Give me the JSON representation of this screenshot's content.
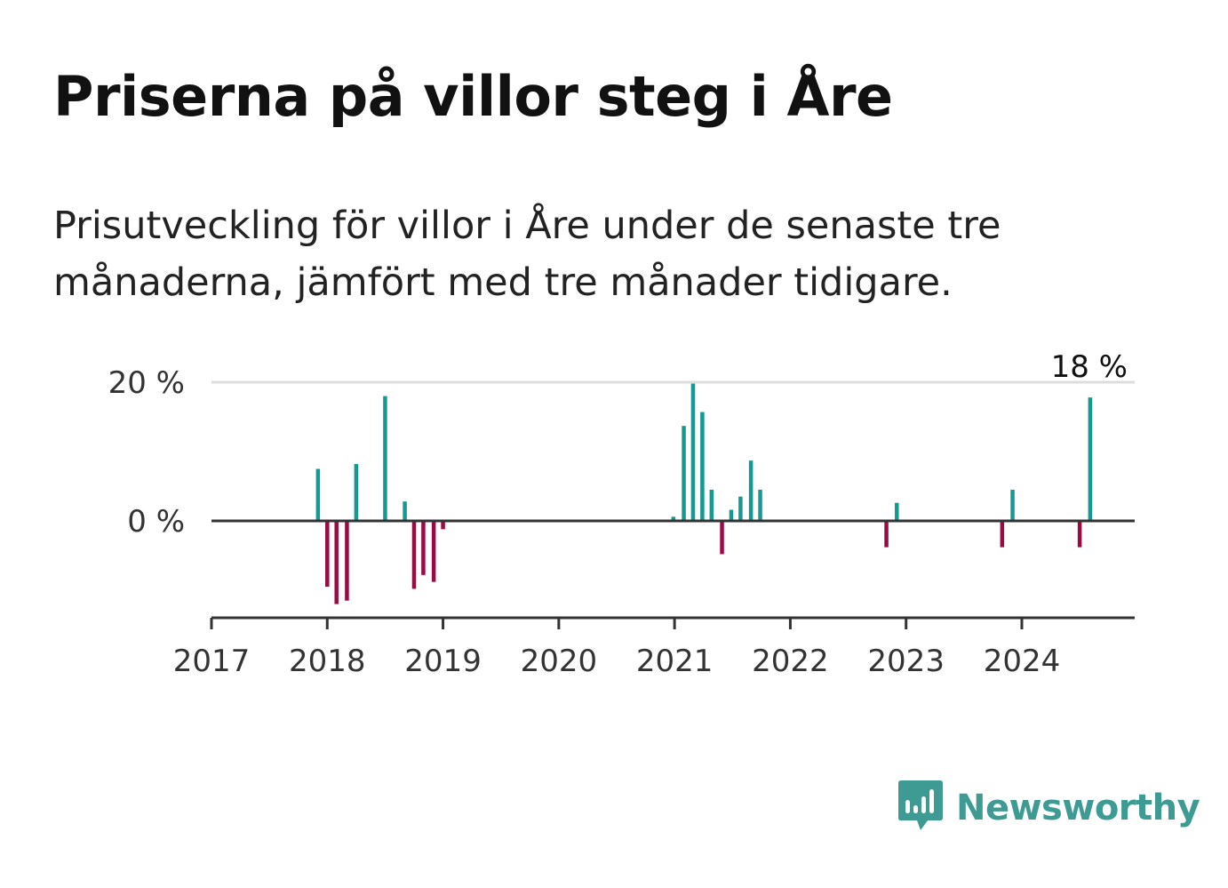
{
  "header": {
    "title": "Priserna på villor steg i Åre",
    "subtitle": "Prisutveckling för villor i Åre under de senaste tre månaderna, jämfört med tre månader tidigare."
  },
  "brand": {
    "name": "Newsworthy",
    "icon": "newsworthy-logo-icon",
    "color": "#3d9b94"
  },
  "chart_data": {
    "type": "bar",
    "x_unit": "year (decimal)",
    "xlim": [
      2017.0,
      2024.95
    ],
    "ylim": [
      -14,
      21
    ],
    "x_ticks": [
      "2017",
      "2018",
      "2019",
      "2020",
      "2021",
      "2022",
      "2023",
      "2024"
    ],
    "y_ticks": [
      {
        "value": 0,
        "label": "0 %"
      },
      {
        "value": 20,
        "label": "20 %"
      }
    ],
    "grid": "horizontal at 20 %",
    "colors": {
      "positive": "#159a93",
      "negative": "#9b0b43",
      "axis": "#333333",
      "grid": "#dddddd"
    },
    "highlight_label": "18 %",
    "points": [
      {
        "x": 2017.92,
        "y": 7.5
      },
      {
        "x": 2018.0,
        "y": -9.5
      },
      {
        "x": 2018.08,
        "y": -12.0
      },
      {
        "x": 2018.17,
        "y": -11.5
      },
      {
        "x": 2018.25,
        "y": 8.2
      },
      {
        "x": 2018.5,
        "y": 18.0
      },
      {
        "x": 2018.67,
        "y": 2.8
      },
      {
        "x": 2018.75,
        "y": -9.8
      },
      {
        "x": 2018.83,
        "y": -7.8
      },
      {
        "x": 2018.92,
        "y": -8.8
      },
      {
        "x": 2019.0,
        "y": -1.2
      },
      {
        "x": 2020.99,
        "y": 0.6
      },
      {
        "x": 2021.08,
        "y": 13.7
      },
      {
        "x": 2021.16,
        "y": 19.8
      },
      {
        "x": 2021.24,
        "y": 15.7
      },
      {
        "x": 2021.32,
        "y": 4.5
      },
      {
        "x": 2021.41,
        "y": -4.8
      },
      {
        "x": 2021.49,
        "y": 1.6
      },
      {
        "x": 2021.57,
        "y": 3.5
      },
      {
        "x": 2021.66,
        "y": 8.7
      },
      {
        "x": 2021.74,
        "y": 4.5
      },
      {
        "x": 2022.83,
        "y": -3.8
      },
      {
        "x": 2022.92,
        "y": 2.6
      },
      {
        "x": 2023.83,
        "y": -3.8
      },
      {
        "x": 2023.92,
        "y": 4.5
      },
      {
        "x": 2024.5,
        "y": -3.8
      },
      {
        "x": 2024.59,
        "y": 17.8
      }
    ]
  }
}
